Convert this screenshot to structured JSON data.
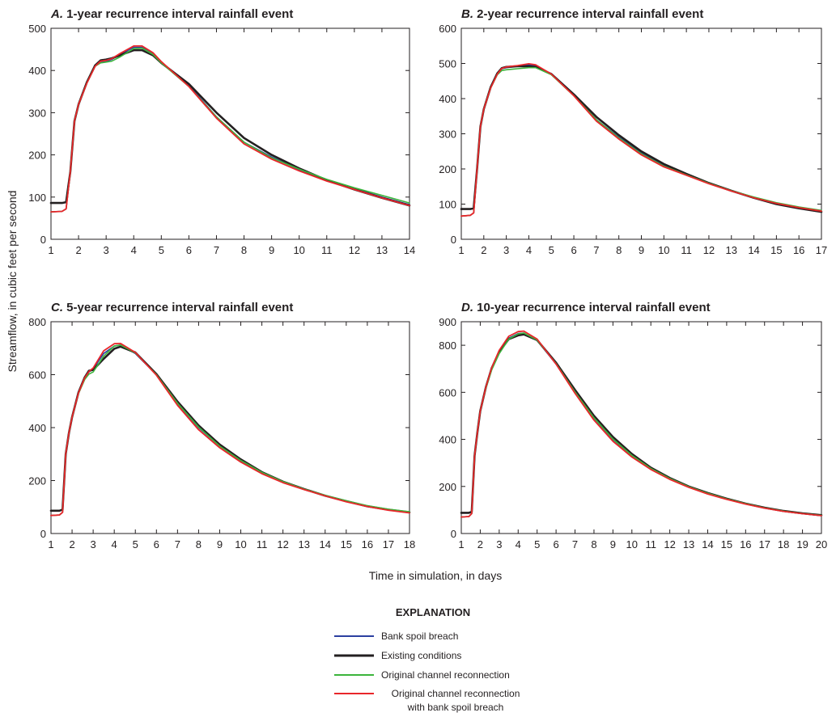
{
  "figure": {
    "y_axis_label": "Streamflow, in cubic feet per second",
    "x_axis_label": "Time in simulation, in days"
  },
  "legend": {
    "heading": "EXPLANATION",
    "items": [
      {
        "label": "Bank spoil breach",
        "color": "#2b3fa0"
      },
      {
        "label": "Existing conditions",
        "color": "#231f20"
      },
      {
        "label": "Original channel reconnection",
        "color": "#3cb43c"
      },
      {
        "label": "Original channel reconnection",
        "label2": "with bank spoil breach",
        "color": "#e8262a"
      }
    ]
  },
  "chart_data": [
    {
      "type": "line",
      "panel_letter": "A.",
      "title": "1-year recurrence interval rainfall event",
      "xlim": [
        1,
        14
      ],
      "ylim": [
        0,
        500
      ],
      "xticks": [
        1,
        2,
        3,
        4,
        5,
        6,
        7,
        8,
        9,
        10,
        11,
        12,
        13,
        14
      ],
      "yticks": [
        0,
        100,
        200,
        300,
        400,
        500
      ],
      "series": [
        {
          "name": "Bank spoil breach",
          "color": "#2b3fa0",
          "x": [
            1,
            1.4,
            1.55,
            1.7,
            1.85,
            2,
            2.3,
            2.6,
            2.8,
            3,
            3.2,
            3.5,
            4,
            4.3,
            4.7,
            5,
            6,
            7,
            8,
            9,
            10,
            11,
            12,
            13,
            14
          ],
          "y": [
            65,
            66,
            72,
            160,
            280,
            320,
            370,
            410,
            420,
            422,
            426,
            438,
            455,
            455,
            440,
            420,
            365,
            290,
            230,
            195,
            165,
            140,
            120,
            100,
            82
          ]
        },
        {
          "name": "Existing conditions",
          "color": "#231f20",
          "x": [
            1,
            1.4,
            1.55,
            1.7,
            1.85,
            2,
            2.3,
            2.6,
            2.8,
            3,
            3.2,
            3.5,
            4,
            4.3,
            4.7,
            5,
            6,
            7,
            8,
            9,
            10,
            11,
            12,
            13,
            14
          ],
          "y": [
            86,
            86,
            88,
            160,
            280,
            320,
            372,
            412,
            424,
            426,
            429,
            436,
            448,
            448,
            436,
            418,
            368,
            300,
            240,
            200,
            168,
            140,
            118,
            98,
            80
          ]
        },
        {
          "name": "Original channel reconnection",
          "color": "#3cb43c",
          "x": [
            1,
            1.4,
            1.55,
            1.7,
            1.85,
            2,
            2.3,
            2.6,
            2.8,
            3,
            3.2,
            3.5,
            4,
            4.3,
            4.7,
            5,
            6,
            7,
            8,
            9,
            10,
            11,
            12,
            13,
            14
          ],
          "y": [
            65,
            66,
            72,
            160,
            280,
            320,
            370,
            410,
            418,
            420,
            422,
            432,
            452,
            453,
            438,
            418,
            362,
            290,
            230,
            193,
            166,
            142,
            122,
            104,
            86
          ]
        },
        {
          "name": "Original channel reconnection with bank spoil breach",
          "color": "#e8262a",
          "x": [
            1,
            1.4,
            1.55,
            1.7,
            1.85,
            2,
            2.3,
            2.6,
            2.8,
            3,
            3.2,
            3.5,
            4,
            4.3,
            4.7,
            5,
            6,
            7,
            8,
            9,
            10,
            11,
            12,
            13,
            14
          ],
          "y": [
            65,
            66,
            72,
            160,
            280,
            320,
            370,
            410,
            422,
            424,
            428,
            440,
            458,
            458,
            442,
            421,
            362,
            287,
            226,
            190,
            162,
            138,
            118,
            98,
            80
          ]
        }
      ]
    },
    {
      "type": "line",
      "panel_letter": "B.",
      "title": "2-year recurrence interval rainfall event",
      "xlim": [
        1,
        17
      ],
      "ylim": [
        0,
        600
      ],
      "xticks": [
        1,
        2,
        3,
        4,
        5,
        6,
        7,
        8,
        9,
        10,
        11,
        12,
        13,
        14,
        15,
        16,
        17
      ],
      "yticks": [
        0,
        100,
        200,
        300,
        400,
        500,
        600
      ],
      "series": [
        {
          "name": "Bank spoil breach",
          "color": "#2b3fa0",
          "x": [
            1,
            1.4,
            1.55,
            1.7,
            1.85,
            2,
            2.3,
            2.6,
            2.8,
            3,
            3.5,
            4,
            4.3,
            5,
            6,
            7,
            8,
            9,
            10,
            11,
            12,
            13,
            14,
            15,
            16,
            17
          ],
          "y": [
            66,
            68,
            75,
            200,
            320,
            370,
            430,
            470,
            485,
            488,
            492,
            496,
            494,
            470,
            410,
            340,
            290,
            245,
            210,
            185,
            160,
            138,
            118,
            102,
            90,
            80
          ]
        },
        {
          "name": "Existing conditions",
          "color": "#231f20",
          "x": [
            1,
            1.4,
            1.55,
            1.7,
            1.85,
            2,
            2.3,
            2.6,
            2.8,
            3,
            3.5,
            4,
            4.3,
            5,
            6,
            7,
            8,
            9,
            10,
            11,
            12,
            13,
            14,
            15,
            16,
            17
          ],
          "y": [
            86,
            86,
            88,
            200,
            320,
            370,
            432,
            472,
            487,
            490,
            492,
            492,
            490,
            470,
            412,
            348,
            296,
            250,
            214,
            186,
            160,
            138,
            118,
            100,
            88,
            78
          ]
        },
        {
          "name": "Original channel reconnection",
          "color": "#3cb43c",
          "x": [
            1,
            1.4,
            1.55,
            1.7,
            1.85,
            2,
            2.3,
            2.6,
            2.8,
            3,
            3.5,
            4,
            4.3,
            5,
            6,
            7,
            8,
            9,
            10,
            11,
            12,
            13,
            14,
            15,
            16,
            17
          ],
          "y": [
            66,
            68,
            75,
            200,
            320,
            370,
            430,
            468,
            480,
            482,
            485,
            488,
            488,
            468,
            408,
            340,
            288,
            243,
            208,
            183,
            159,
            138,
            120,
            104,
            92,
            82
          ]
        },
        {
          "name": "Original channel reconnection with bank spoil breach",
          "color": "#e8262a",
          "x": [
            1,
            1.4,
            1.55,
            1.7,
            1.85,
            2,
            2.3,
            2.6,
            2.8,
            3,
            3.5,
            4,
            4.3,
            5,
            6,
            7,
            8,
            9,
            10,
            11,
            12,
            13,
            14,
            15,
            16,
            17
          ],
          "y": [
            66,
            68,
            75,
            200,
            320,
            370,
            430,
            470,
            486,
            490,
            494,
            499,
            496,
            470,
            408,
            336,
            285,
            240,
            206,
            182,
            158,
            137,
            118,
            102,
            90,
            80
          ]
        }
      ]
    },
    {
      "type": "line",
      "panel_letter": "C.",
      "title": "5-year recurrence interval rainfall event",
      "xlim": [
        1,
        18
      ],
      "ylim": [
        0,
        800
      ],
      "xticks": [
        1,
        2,
        3,
        4,
        5,
        6,
        7,
        8,
        9,
        10,
        11,
        12,
        13,
        14,
        15,
        16,
        17,
        18
      ],
      "yticks": [
        0,
        200,
        400,
        600,
        800
      ],
      "series": [
        {
          "name": "Bank spoil breach",
          "color": "#2b3fa0",
          "x": [
            1,
            1.4,
            1.55,
            1.7,
            1.85,
            2,
            2.3,
            2.6,
            2.8,
            3,
            3.5,
            4,
            4.3,
            5,
            6,
            7,
            8,
            9,
            10,
            11,
            12,
            13,
            14,
            15,
            16,
            17,
            18
          ],
          "y": [
            68,
            70,
            80,
            300,
            380,
            440,
            530,
            585,
            610,
            622,
            680,
            708,
            712,
            680,
            600,
            490,
            400,
            330,
            275,
            230,
            195,
            168,
            143,
            122,
            103,
            90,
            80
          ]
        },
        {
          "name": "Existing conditions",
          "color": "#231f20",
          "x": [
            1,
            1.4,
            1.55,
            1.7,
            1.85,
            2,
            2.3,
            2.6,
            2.8,
            3,
            3.5,
            4,
            4.3,
            5,
            6,
            7,
            8,
            9,
            10,
            11,
            12,
            13,
            14,
            15,
            16,
            17,
            18
          ],
          "y": [
            86,
            86,
            90,
            300,
            380,
            440,
            532,
            590,
            615,
            618,
            660,
            698,
            706,
            684,
            602,
            498,
            408,
            336,
            280,
            232,
            196,
            168,
            143,
            122,
            103,
            90,
            80
          ]
        },
        {
          "name": "Original channel reconnection",
          "color": "#3cb43c",
          "x": [
            1,
            1.4,
            1.55,
            1.7,
            1.85,
            2,
            2.3,
            2.6,
            2.8,
            3,
            3.5,
            4,
            4.3,
            5,
            6,
            7,
            8,
            9,
            10,
            11,
            12,
            13,
            14,
            15,
            16,
            17,
            18
          ],
          "y": [
            68,
            70,
            80,
            300,
            380,
            440,
            528,
            582,
            602,
            610,
            670,
            708,
            712,
            682,
            600,
            492,
            402,
            330,
            276,
            231,
            196,
            168,
            144,
            124,
            105,
            92,
            82
          ]
        },
        {
          "name": "Original channel reconnection with bank spoil breach",
          "color": "#e8262a",
          "x": [
            1,
            1.4,
            1.55,
            1.7,
            1.85,
            2,
            2.3,
            2.6,
            2.8,
            3,
            3.5,
            4,
            4.3,
            5,
            6,
            7,
            8,
            9,
            10,
            11,
            12,
            13,
            14,
            15,
            16,
            17,
            18
          ],
          "y": [
            68,
            70,
            80,
            300,
            380,
            440,
            530,
            588,
            612,
            625,
            690,
            717,
            718,
            684,
            598,
            484,
            392,
            324,
            270,
            226,
            192,
            166,
            142,
            120,
            102,
            88,
            78
          ]
        }
      ]
    },
    {
      "type": "line",
      "panel_letter": "D.",
      "title": "10-year recurrence interval rainfall event",
      "xlim": [
        1,
        20
      ],
      "ylim": [
        0,
        900
      ],
      "xticks": [
        1,
        2,
        3,
        4,
        5,
        6,
        7,
        8,
        9,
        10,
        11,
        12,
        13,
        14,
        15,
        16,
        17,
        18,
        19,
        20
      ],
      "yticks": [
        0,
        200,
        400,
        600,
        800,
        900
      ],
      "series": [
        {
          "name": "Bank spoil breach",
          "color": "#2b3fa0",
          "x": [
            1,
            1.4,
            1.55,
            1.7,
            1.85,
            2,
            2.3,
            2.6,
            3,
            3.5,
            4,
            4.3,
            5,
            6,
            7,
            8,
            9,
            10,
            11,
            12,
            13,
            14,
            15,
            16,
            17,
            18,
            19,
            20
          ],
          "y": [
            70,
            72,
            85,
            330,
            430,
            520,
            620,
            700,
            770,
            830,
            850,
            852,
            820,
            720,
            600,
            490,
            400,
            330,
            275,
            232,
            198,
            170,
            146,
            126,
            108,
            94,
            84,
            76
          ]
        },
        {
          "name": "Existing conditions",
          "color": "#231f20",
          "x": [
            1,
            1.4,
            1.55,
            1.7,
            1.85,
            2,
            2.3,
            2.6,
            3,
            3.5,
            4,
            4.3,
            5,
            6,
            7,
            8,
            9,
            10,
            11,
            12,
            13,
            14,
            15,
            16,
            17,
            18,
            19,
            20
          ],
          "y": [
            88,
            88,
            92,
            330,
            430,
            520,
            622,
            702,
            772,
            826,
            842,
            846,
            822,
            726,
            610,
            500,
            410,
            338,
            280,
            236,
            200,
            172,
            148,
            127,
            110,
            96,
            86,
            78
          ]
        },
        {
          "name": "Original channel reconnection",
          "color": "#3cb43c",
          "x": [
            1,
            1.4,
            1.55,
            1.7,
            1.85,
            2,
            2.3,
            2.6,
            3,
            3.5,
            4,
            4.3,
            5,
            6,
            7,
            8,
            9,
            10,
            11,
            12,
            13,
            14,
            15,
            16,
            17,
            18,
            19,
            20
          ],
          "y": [
            70,
            72,
            85,
            330,
            430,
            520,
            618,
            695,
            764,
            826,
            848,
            852,
            822,
            722,
            602,
            492,
            402,
            332,
            277,
            234,
            199,
            171,
            147,
            127,
            109,
            95,
            85,
            77
          ]
        },
        {
          "name": "Original channel reconnection with bank spoil breach",
          "color": "#e8262a",
          "x": [
            1,
            1.4,
            1.55,
            1.7,
            1.85,
            2,
            2.3,
            2.6,
            3,
            3.5,
            4,
            4.3,
            5,
            6,
            7,
            8,
            9,
            10,
            11,
            12,
            13,
            14,
            15,
            16,
            17,
            18,
            19,
            20
          ],
          "y": [
            70,
            72,
            85,
            330,
            430,
            520,
            622,
            704,
            778,
            838,
            858,
            860,
            826,
            720,
            596,
            482,
            392,
            325,
            272,
            230,
            196,
            168,
            145,
            125,
            108,
            94,
            84,
            76
          ]
        }
      ]
    }
  ]
}
